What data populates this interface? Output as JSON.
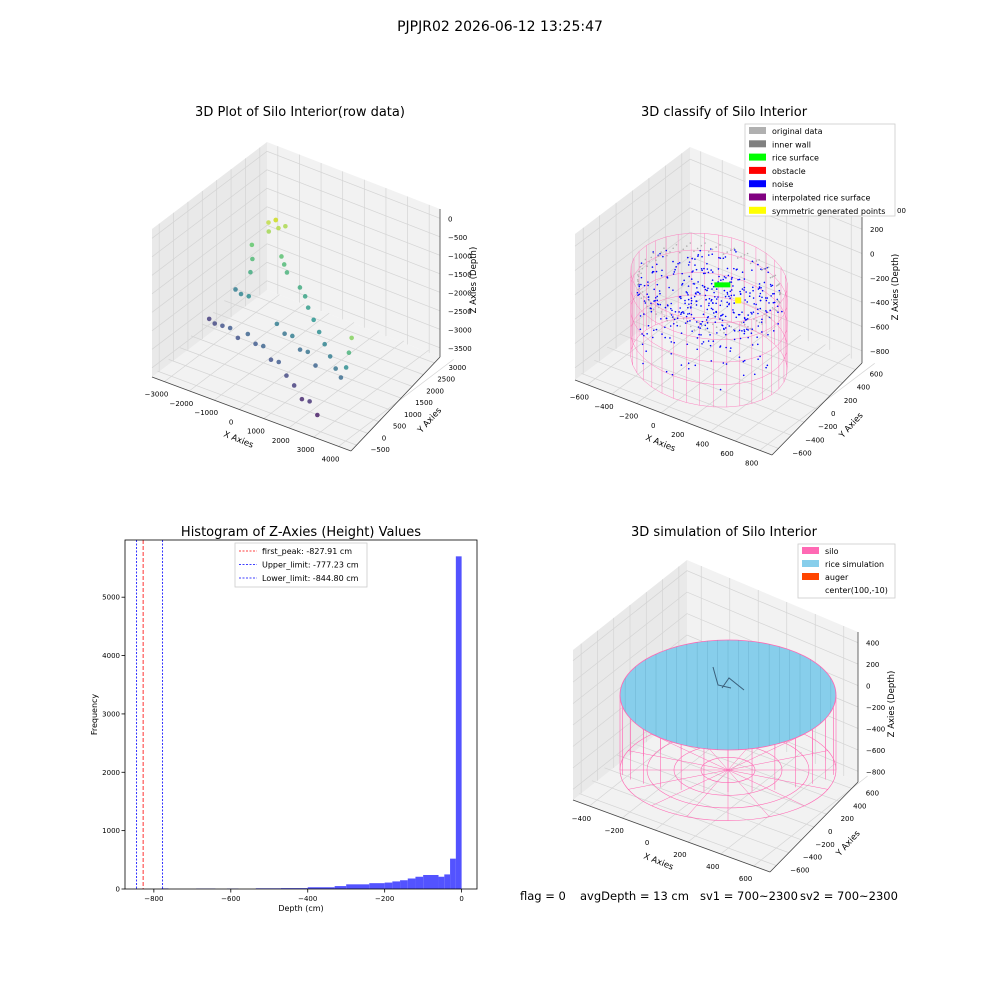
{
  "figure_title": "PJPJR02 2026-06-12 13:25:47",
  "status_line": {
    "flag": "flag = 0",
    "avg_depth": "avgDepth = 13 cm",
    "sv1": "sv1 = 700~2300",
    "sv2": "sv2 = 700~2300"
  },
  "colors": {
    "silo": "#ff69b4",
    "rice_simulation": "#87ceeb",
    "auger": "#ff4500",
    "histogram_bar": "#4a4aff",
    "original_data": "#b0b0b0",
    "inner_wall": "#808080",
    "rice_surface": "#00ff00",
    "obstacle": "#ff0000",
    "noise": "#0000ff",
    "interpolated_rice_surface": "#800080",
    "symmetric_generated_points": "#ffff00"
  },
  "chart_data": [
    {
      "type": "scatter",
      "projection": "3d",
      "title": "3D Plot of Silo Interior(row data)",
      "xlabel": "X Axies",
      "ylabel": "Y Axies",
      "zlabel": "Z Axies (Depth)",
      "xticks": [
        "−3000",
        "−2000",
        "−1000",
        "0",
        "1000",
        "2000",
        "3000",
        "4000"
      ],
      "yticks": [
        "−500",
        "0",
        "500",
        "1000",
        "1500",
        "2000",
        "2500",
        "3000"
      ],
      "zticks": [
        "0",
        "−500",
        "−1000",
        "−1500",
        "−2000",
        "−2500",
        "−3000",
        "−3500"
      ],
      "xlim": [
        -3500,
        4500
      ],
      "ylim": [
        -700,
        3300
      ],
      "zlim": [
        -3900,
        0
      ],
      "colormap": "viridis",
      "points": [
        {
          "x": -1500,
          "y": 2300,
          "z": -1200
        },
        {
          "x": -1300,
          "y": 2400,
          "z": -1150
        },
        {
          "x": -1100,
          "y": 2300,
          "z": -1250
        },
        {
          "x": -1400,
          "y": 2200,
          "z": -1350
        },
        {
          "x": -1000,
          "y": 2500,
          "z": -1300
        },
        {
          "x": -1250,
          "y": 2350,
          "z": -1100
        },
        {
          "x": -800,
          "y": 2100,
          "z": -1800
        },
        {
          "x": -600,
          "y": 2000,
          "z": -1900
        },
        {
          "x": -400,
          "y": 1900,
          "z": -2000
        },
        {
          "x": -1900,
          "y": 2000,
          "z": -1700
        },
        {
          "x": -1700,
          "y": 1800,
          "z": -1900
        },
        {
          "x": -1600,
          "y": 1600,
          "z": -2100
        },
        {
          "x": 300,
          "y": 1700,
          "z": -2100
        },
        {
          "x": 600,
          "y": 1600,
          "z": -2200
        },
        {
          "x": 900,
          "y": 1400,
          "z": -2300
        },
        {
          "x": 1300,
          "y": 1200,
          "z": -2400
        },
        {
          "x": 1700,
          "y": 1000,
          "z": -2500
        },
        {
          "x": 2100,
          "y": 800,
          "z": -2600
        },
        {
          "x": 2500,
          "y": 600,
          "z": -2700
        },
        {
          "x": 2900,
          "y": 400,
          "z": -2800
        },
        {
          "x": 3200,
          "y": 300,
          "z": -2900
        },
        {
          "x": 3500,
          "y": 200,
          "z": -2500
        },
        {
          "x": 3700,
          "y": 100,
          "z": -2000
        },
        {
          "x": 3900,
          "y": 0,
          "z": -1500
        },
        {
          "x": -2900,
          "y": 1200,
          "z": -3400
        },
        {
          "x": -2500,
          "y": 1000,
          "z": -3300
        },
        {
          "x": -2100,
          "y": 900,
          "z": -3200
        },
        {
          "x": -1700,
          "y": 800,
          "z": -3100
        },
        {
          "x": -1300,
          "y": 700,
          "z": -3200
        },
        {
          "x": -900,
          "y": 700,
          "z": -3000
        },
        {
          "x": -500,
          "y": 600,
          "z": -3100
        },
        {
          "x": -100,
          "y": 500,
          "z": -3000
        },
        {
          "x": 300,
          "y": 400,
          "z": -3200
        },
        {
          "x": 700,
          "y": 300,
          "z": -3100
        },
        {
          "x": 1100,
          "y": 200,
          "z": -3300
        },
        {
          "x": 1500,
          "y": 100,
          "z": -3400
        },
        {
          "x": 1900,
          "y": 0,
          "z": -3600
        },
        {
          "x": 2300,
          "y": -100,
          "z": -3500
        },
        {
          "x": 2700,
          "y": -200,
          "z": -3700
        },
        {
          "x": -2200,
          "y": 1600,
          "z": -2700
        },
        {
          "x": -1800,
          "y": 1400,
          "z": -2600
        },
        {
          "x": -1400,
          "y": 1300,
          "z": -2500
        },
        {
          "x": 0,
          "y": 1000,
          "z": -2700
        },
        {
          "x": 400,
          "y": 900,
          "z": -2800
        },
        {
          "x": 800,
          "y": 800,
          "z": -2700
        },
        {
          "x": 1200,
          "y": 700,
          "z": -2900
        },
        {
          "x": 1600,
          "y": 600,
          "z": -2800
        },
        {
          "x": 2000,
          "y": 500,
          "z": -3000
        }
      ]
    },
    {
      "type": "scatter",
      "projection": "3d",
      "title": "3D classify of Silo Interior",
      "xlabel": "X Axies",
      "ylabel": "Y Axies",
      "zlabel": "Z Axies (Depth)",
      "xticks": [
        "−600",
        "−400",
        "−200",
        "0",
        "200",
        "400",
        "600",
        "800"
      ],
      "yticks": [
        "−600",
        "−400",
        "−200",
        "0",
        "200",
        "400",
        "600"
      ],
      "zticks": [
        "200",
        "0",
        "−200",
        "−400",
        "−600",
        "−800"
      ],
      "zticks_partial": [
        "00"
      ],
      "xlim": [
        -700,
        850
      ],
      "ylim": [
        -700,
        700
      ],
      "zlim": [
        -900,
        400
      ],
      "legend_position": "top-right",
      "legend": [
        {
          "label": "original data",
          "color": "#b0b0b0"
        },
        {
          "label": "inner wall",
          "color": "#808080"
        },
        {
          "label": "rice surface",
          "color": "#00ff00"
        },
        {
          "label": "obstacle",
          "color": "#ff0000"
        },
        {
          "label": "noise",
          "color": "#0000ff"
        },
        {
          "label": "interpolated rice surface",
          "color": "#800080"
        },
        {
          "label": "symmetric generated points",
          "color": "#ffff00"
        }
      ]
    },
    {
      "type": "bar",
      "subtype": "histogram",
      "title": "Histogram of Z-Axies (Height) Values",
      "xlabel": "Depth (cm)",
      "ylabel": "Frequency",
      "xticks": [
        "−800",
        "−600",
        "−400",
        "−200",
        "0"
      ],
      "yticks": [
        "0",
        "1000",
        "2000",
        "3000",
        "4000",
        "5000"
      ],
      "xlim": [
        -875,
        40
      ],
      "ylim": [
        0,
        5980
      ],
      "legend_position": "top-center",
      "bins": [
        {
          "x0": -780,
          "x1": -762,
          "count": 10
        },
        {
          "x0": -690,
          "x1": -640,
          "count": 8
        },
        {
          "x0": -610,
          "x1": -580,
          "count": 8
        },
        {
          "x0": -535,
          "x1": -470,
          "count": 12
        },
        {
          "x0": -470,
          "x1": -400,
          "count": 15
        },
        {
          "x0": -400,
          "x1": -330,
          "count": 30
        },
        {
          "x0": -330,
          "x1": -300,
          "count": 50
        },
        {
          "x0": -300,
          "x1": -240,
          "count": 80
        },
        {
          "x0": -240,
          "x1": -200,
          "count": 100
        },
        {
          "x0": -200,
          "x1": -180,
          "count": 110
        },
        {
          "x0": -180,
          "x1": -160,
          "count": 130
        },
        {
          "x0": -160,
          "x1": -140,
          "count": 150
        },
        {
          "x0": -140,
          "x1": -120,
          "count": 180
        },
        {
          "x0": -120,
          "x1": -100,
          "count": 210
        },
        {
          "x0": -100,
          "x1": -60,
          "count": 240
        },
        {
          "x0": -60,
          "x1": -45,
          "count": 210
        },
        {
          "x0": -45,
          "x1": -30,
          "count": 250
        },
        {
          "x0": -30,
          "x1": -15,
          "count": 520
        },
        {
          "x0": -15,
          "x1": 0,
          "count": 5700
        }
      ],
      "reference_lines": [
        {
          "label": "first_peak: -827.91 cm",
          "value": -827.91,
          "color": "#ff0000"
        },
        {
          "label": "Upper_limit: -777.23 cm",
          "value": -777.23,
          "color": "#0000ff"
        },
        {
          "label": "Lower_limit: -844.80 cm",
          "value": -844.8,
          "color": "#0000ff"
        }
      ]
    },
    {
      "type": "area",
      "projection": "3d",
      "title": "3D simulation of Silo Interior",
      "xlabel": "X Axies",
      "ylabel": "Y Axies",
      "zlabel": "Z Axies (Depth)",
      "xticks": [
        "−400",
        "−200",
        "0",
        "200",
        "400",
        "600"
      ],
      "yticks": [
        "−600",
        "−400",
        "−200",
        "0",
        "200",
        "400",
        "600"
      ],
      "zticks": [
        "400",
        "200",
        "0",
        "−200",
        "−400",
        "−600",
        "−800"
      ],
      "legend_position": "top-right",
      "legend": [
        {
          "label": "silo",
          "color": "#ff69b4"
        },
        {
          "label": "rice simulation",
          "color": "#87ceeb"
        },
        {
          "label": "auger",
          "color": "#ff4500"
        },
        {
          "label": "center(100,-10)",
          "color": ""
        }
      ]
    }
  ]
}
